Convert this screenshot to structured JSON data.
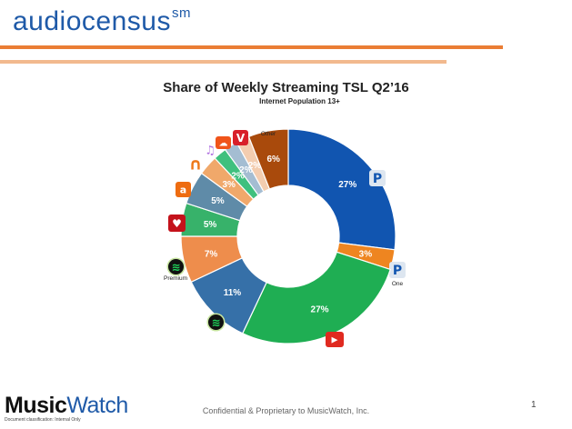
{
  "header": {
    "brand": "audiocensus",
    "brand_mark": "sm"
  },
  "chart_data": {
    "type": "pie",
    "title": "Share of Weekly Streaming TSL Q2’16",
    "subtitle": "Internet Population 13+",
    "slices": [
      {
        "label": "Pandora",
        "value": 27,
        "value_label": "27%",
        "color": "#1155b0",
        "icon": "pandora-icon"
      },
      {
        "label": "Pandora One",
        "value": 3,
        "value_label": "3%",
        "color": "#ee8520",
        "icon": "pandora-one-icon",
        "icon_caption": "One"
      },
      {
        "label": "YouTube",
        "value": 27,
        "value_label": "27%",
        "color": "#1fae53",
        "icon": "youtube-icon"
      },
      {
        "label": "Spotify",
        "value": 11,
        "value_label": "11%",
        "color": "#3670a8",
        "icon": "spotify-icon"
      },
      {
        "label": "Spotify Premium",
        "value": 7,
        "value_label": "7%",
        "color": "#ee8d4c",
        "icon": "spotify-premium-icon",
        "icon_caption": "Premium"
      },
      {
        "label": "iHeartRadio",
        "value": 5,
        "value_label": "5%",
        "color": "#37b26a",
        "icon": "iheartradio-icon"
      },
      {
        "label": "Amazon",
        "value": 5,
        "value_label": "5%",
        "color": "#5f8ba8",
        "icon": "amazon-icon"
      },
      {
        "label": "Headphones app",
        "value": 3,
        "value_label": "3%",
        "color": "#f0a86a",
        "icon": "headphones-icon"
      },
      {
        "label": "Apple Music",
        "value": 2,
        "value_label": "2%",
        "color": "#3fc07e",
        "icon": "music-note-icon"
      },
      {
        "label": "SoundCloud",
        "value": 2,
        "value_label": "2%",
        "color": "#a4bdd2",
        "icon": "soundcloud-icon"
      },
      {
        "label": "Vevo",
        "value": 2,
        "value_label": "2%",
        "color": "#f3cdb0",
        "icon": "vevo-icon"
      },
      {
        "label": "Other",
        "value": 6,
        "value_label": "6%",
        "color": "#a94a0c",
        "icon": "other-label",
        "icon_caption": "Other"
      }
    ]
  },
  "footer": {
    "logo_part1": "Music",
    "logo_part2": "Watch",
    "classification": "Document classification: Internal Only",
    "confidential": "Confidential & Proprietary to MusicWatch, Inc.",
    "page_number": "1"
  }
}
